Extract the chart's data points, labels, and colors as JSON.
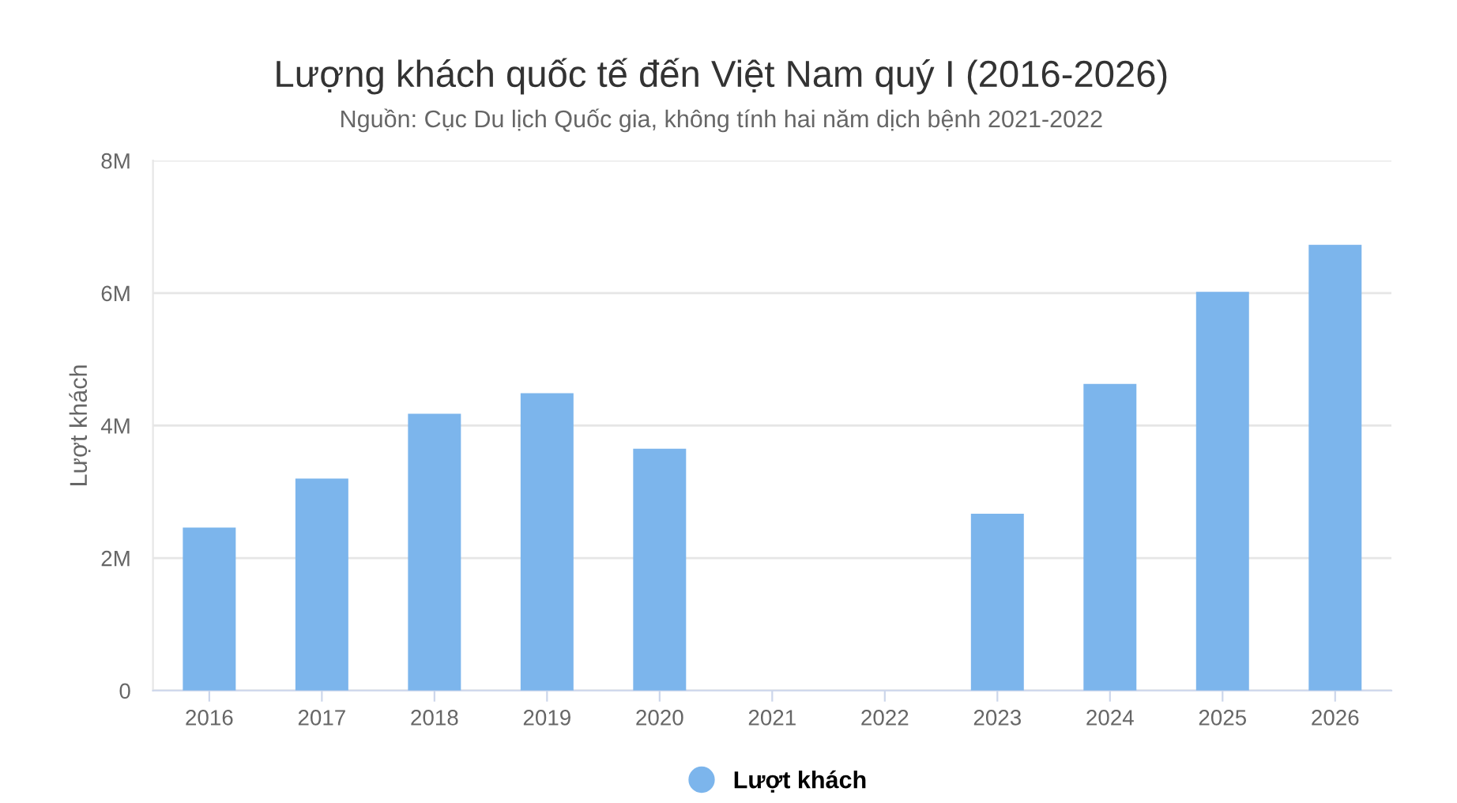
{
  "chart_data": {
    "type": "bar",
    "title": "Lượng khách quốc tế đến Việt Nam quý I (2016-2026)",
    "subtitle": "Nguồn: Cục Du lịch Quốc gia, không tính hai năm dịch bệnh 2021-2022",
    "ylabel": "Lượt khách",
    "categories": [
      "2016",
      "2017",
      "2018",
      "2019",
      "2020",
      "2021",
      "2022",
      "2023",
      "2024",
      "2025",
      "2026"
    ],
    "series": [
      {
        "name": "Lượt khách",
        "color": "#7cb5ec",
        "values": [
          2.46,
          3.2,
          4.18,
          4.49,
          3.65,
          null,
          null,
          2.67,
          4.63,
          6.02,
          6.73
        ]
      }
    ],
    "ylim": [
      0,
      8
    ],
    "yticks": [
      0,
      {
        "value": 2,
        "label": "2M"
      },
      {
        "value": 4,
        "label": "4M"
      },
      {
        "value": 6,
        "label": "6M"
      },
      {
        "value": 8,
        "label": "8M"
      }
    ],
    "grid": "y",
    "legend": "bottom"
  }
}
